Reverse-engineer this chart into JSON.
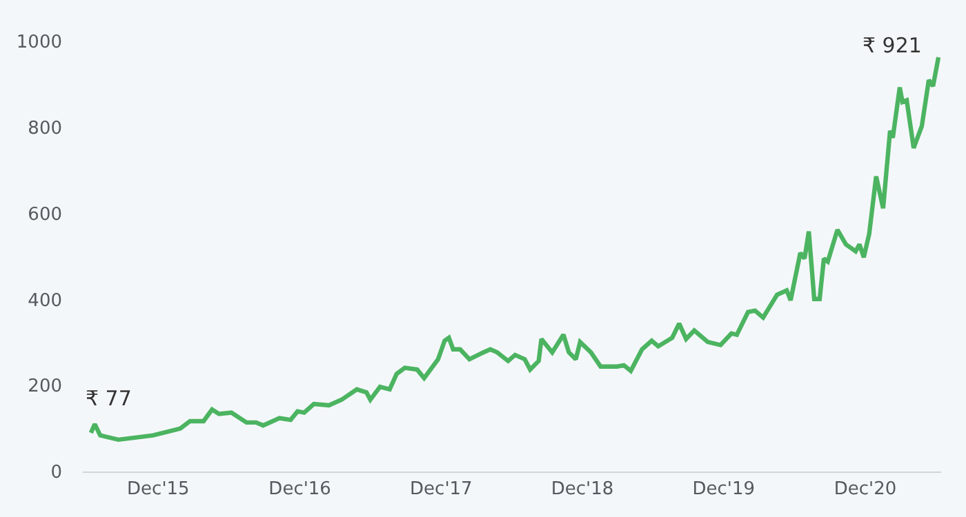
{
  "chart_data": {
    "type": "line",
    "x": [
      "2015-06-10",
      "2015-06-20",
      "2015-07-04",
      "2015-08-20",
      "2015-11-17",
      "2016-01-27",
      "2016-02-21",
      "2016-03-27",
      "2016-04-18",
      "2016-05-06",
      "2016-06-07",
      "2016-07-16",
      "2016-08-10",
      "2016-08-28",
      "2016-10-09",
      "2016-11-07",
      "2016-11-25",
      "2016-12-12",
      "2017-01-06",
      "2017-02-14",
      "2017-03-19",
      "2017-04-27",
      "2017-05-22",
      "2017-06-01",
      "2017-06-26",
      "2017-07-21",
      "2017-08-08",
      "2017-08-29",
      "2017-09-30",
      "2017-10-18",
      "2017-11-23",
      "2017-12-10",
      "2017-12-21",
      "2018-01-01",
      "2018-01-19",
      "2018-02-12",
      "2018-03-13",
      "2018-04-07",
      "2018-04-25",
      "2018-05-23",
      "2018-06-10",
      "2018-07-05",
      "2018-07-19",
      "2018-08-10",
      "2018-08-17",
      "2018-09-14",
      "2018-10-13",
      "2018-10-27",
      "2018-11-14",
      "2018-11-25",
      "2018-12-23",
      "2019-01-17",
      "2019-03-01",
      "2019-03-18",
      "2019-04-05",
      "2019-05-04",
      "2019-05-29",
      "2019-06-15",
      "2019-07-21",
      "2019-08-08",
      "2019-08-26",
      "2019-09-16",
      "2019-10-21",
      "2019-11-23",
      "2019-12-21",
      "2020-01-04",
      "2020-02-02",
      "2020-02-20",
      "2020-03-12",
      "2020-04-17",
      "2020-05-12",
      "2020-05-22",
      "2020-06-16",
      "2020-06-27",
      "2020-07-08",
      "2020-07-22",
      "2020-08-05",
      "2020-08-16",
      "2020-08-26",
      "2020-09-20",
      "2020-10-12",
      "2020-11-06",
      "2020-11-16",
      "2020-11-27",
      "2020-12-11",
      "2020-12-29",
      "2021-01-16",
      "2021-02-03",
      "2021-02-10",
      "2021-02-28",
      "2021-03-07",
      "2021-03-18",
      "2021-04-05",
      "2021-04-26",
      "2021-05-14",
      "2021-05-25",
      "2021-06-08"
    ],
    "series": [
      {
        "color": "#4cb461",
        "values": [
          90,
          110,
          84,
          74,
          84,
          100,
          117,
          117,
          144,
          134,
          137,
          114,
          114,
          107,
          124,
          120,
          140,
          137,
          157,
          154,
          167,
          191,
          184,
          167,
          197,
          191,
          227,
          241,
          237,
          217,
          261,
          304,
          311,
          284,
          284,
          261,
          274,
          284,
          277,
          257,
          271,
          261,
          237,
          257,
          308,
          277,
          318,
          277,
          261,
          301,
          277,
          244,
          244,
          247,
          234,
          284,
          304,
          291,
          311,
          344,
          308,
          328,
          301,
          294,
          321,
          318,
          371,
          374,
          358,
          411,
          421,
          398,
          508,
          495,
          558,
          401,
          401,
          495,
          488,
          562,
          528,
          512,
          528,
          498,
          552,
          686,
          612,
          792,
          776,
          893,
          859,
          863,
          752,
          803,
          910,
          896,
          963
        ]
      }
    ],
    "xlim": [
      "2015-05-20",
      "2021-06-15"
    ],
    "xticks": [
      {
        "value": "2015-12-01",
        "label": "Dec'15"
      },
      {
        "value": "2016-12-01",
        "label": "Dec'16"
      },
      {
        "value": "2017-12-01",
        "label": "Dec'17"
      },
      {
        "value": "2018-12-01",
        "label": "Dec'18"
      },
      {
        "value": "2019-12-01",
        "label": "Dec'19"
      },
      {
        "value": "2020-12-01",
        "label": "Dec'20"
      }
    ],
    "ylim": [
      0,
      1000
    ],
    "yticks": [
      0,
      200,
      400,
      600,
      800,
      1000
    ],
    "grid": false,
    "marker": "none",
    "line_style": "solid",
    "annotations": [
      "₹ 77",
      "₹ 921"
    ]
  }
}
